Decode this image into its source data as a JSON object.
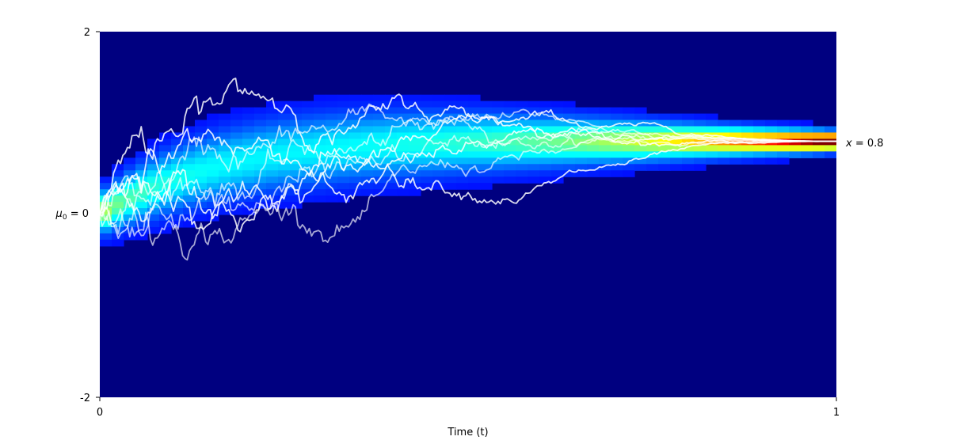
{
  "chart_data": {
    "type": "heatmap",
    "title": "",
    "xlabel": "Time (t)",
    "ylabel": "",
    "xlim": [
      0,
      1
    ],
    "ylim": [
      -2,
      2
    ],
    "x_ticks": [
      "0",
      "1"
    ],
    "y_ticks": [
      "2",
      "-2"
    ],
    "grid": false,
    "legend": "none",
    "annotations": {
      "start": {
        "prefix": "μ",
        "subscript": "0",
        "suffix": " = 0",
        "y": 0
      },
      "end": {
        "prefix": "x",
        "suffix": " = 0.8",
        "y": 0.8
      }
    },
    "density": {
      "colormap": "jet",
      "background_color": "#000080",
      "start_mean": 0,
      "end_mean": 0.8,
      "description_values": [
        {
          "t": 0.0,
          "mean": 0.0
        },
        {
          "t": 0.25,
          "mean": 0.6
        },
        {
          "t": 0.5,
          "mean": 0.72
        },
        {
          "t": 0.75,
          "mean": 0.78
        },
        {
          "t": 1.0,
          "mean": 0.8
        }
      ]
    },
    "sample_paths": {
      "count": 8,
      "color": "#ffffff",
      "start_y": 0,
      "end_y": 0.8
    }
  }
}
